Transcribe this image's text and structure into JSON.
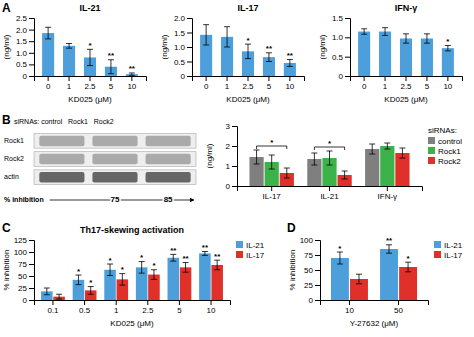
{
  "chart_data": [
    {
      "type": "bar",
      "panel": "A",
      "title": "IL-21",
      "categories": [
        "0",
        "1",
        "2.5",
        "5",
        "10"
      ],
      "series": [
        {
          "color": "#4d9fdc",
          "values": [
            1.85,
            1.3,
            0.8,
            0.4,
            0.08
          ],
          "errors": [
            0.25,
            0.1,
            0.35,
            0.3,
            0.05
          ],
          "annotations": [
            null,
            null,
            "*",
            "**",
            "**"
          ]
        }
      ],
      "xlabel": "KD025 (μM)",
      "ylabel": "(ng/ml)",
      "ylim": [
        0,
        2.5
      ],
      "yticks": [
        0,
        0.5,
        {
          "value": 1,
          "label": "1.0"
        },
        1.5,
        {
          "value": 2,
          "label": "2.0"
        },
        2.5
      ]
    },
    {
      "type": "bar",
      "title": "IL-17",
      "categories": [
        "0",
        "1",
        "2.5",
        "5",
        "10"
      ],
      "series": [
        {
          "color": "#4d9fdc",
          "values": [
            1.42,
            1.35,
            0.85,
            0.65,
            0.45
          ],
          "errors": [
            0.35,
            0.35,
            0.25,
            0.15,
            0.12
          ],
          "annotations": [
            null,
            null,
            "*",
            "**",
            "**"
          ]
        }
      ],
      "xlabel": "KD025 (μM)",
      "ylabel": "(ng/ml)",
      "ylim": [
        0,
        2
      ],
      "yticks": [
        0,
        0.5,
        {
          "value": 1,
          "label": "1.0"
        },
        1.5,
        {
          "value": 2,
          "label": "2.0"
        }
      ]
    },
    {
      "type": "bar",
      "title": "IFN-γ",
      "categories": [
        "0",
        "1",
        "2.5",
        "5",
        "10"
      ],
      "series": [
        {
          "color": "#4d9fdc",
          "values": [
            1.15,
            1.15,
            0.97,
            0.97,
            0.72
          ],
          "errors": [
            0.07,
            0.1,
            0.12,
            0.12,
            0.07
          ],
          "annotations": [
            null,
            null,
            null,
            null,
            "*"
          ]
        }
      ],
      "xlabel": "KD025 (μM)",
      "ylabel": "(ng/ml)",
      "ylim": [
        0,
        1.5
      ],
      "yticks": [
        0,
        0.5,
        {
          "value": 1,
          "label": "1.0"
        },
        1.5
      ]
    },
    {
      "type": "blot",
      "panel": "B",
      "title": "siRNAs: control   Rock1   Rock2",
      "categories": [
        "Rock1",
        "Rock2",
        "actin"
      ],
      "annotations": [
        "% inhibition"
      ],
      "values": [
        null,
        75,
        85
      ],
      "data_labels": true
    },
    {
      "type": "bar",
      "categories": [
        "IL-17",
        "IL-21",
        "IFN-γ"
      ],
      "series": [
        {
          "name": "control",
          "color": "#7f7f7f",
          "values": [
            1.45,
            1.35,
            1.85
          ],
          "errors": [
            0.35,
            0.3,
            0.25
          ]
        },
        {
          "name": "Rock1",
          "color": "#3cb34a",
          "values": [
            1.2,
            1.4,
            2.0
          ],
          "errors": [
            0.35,
            0.35,
            0.15
          ]
        },
        {
          "name": "Rock2",
          "color": "#e0302a",
          "values": [
            0.65,
            0.55,
            1.65
          ],
          "errors": [
            0.25,
            0.2,
            0.25
          ]
        }
      ],
      "ylabel": "(ng/ml)",
      "ylim": [
        0,
        3
      ],
      "yticks": [
        0,
        1,
        2,
        3
      ],
      "legend": "right",
      "legend_title": "siRNAs:",
      "annotations": [
        {
          "text": "*",
          "category": "IL-17",
          "series": [
            "control",
            "Rock2"
          ]
        },
        {
          "text": "*",
          "category": "IL-21",
          "series": [
            "control",
            "Rock2"
          ]
        }
      ]
    },
    {
      "type": "bar",
      "panel": "C",
      "title": "Th17-skewing activation",
      "categories": [
        "0.1",
        "0.5",
        "1",
        "2.5",
        "5",
        "10"
      ],
      "series": [
        {
          "name": "IL-21",
          "color": "#4d9fdc",
          "values": [
            18,
            42,
            63,
            68,
            88,
            97
          ],
          "errors": [
            7,
            10,
            12,
            12,
            7,
            4
          ],
          "annotations": [
            null,
            "*",
            "*",
            "*",
            "**",
            "**"
          ]
        },
        {
          "name": "IL-17",
          "color": "#e0302a",
          "values": [
            7,
            20,
            43,
            53,
            68,
            73
          ],
          "errors": [
            5,
            8,
            12,
            10,
            10,
            10
          ],
          "annotations": [
            null,
            "*",
            "*",
            "*",
            "**",
            "**"
          ]
        }
      ],
      "xlabel": "KD025 (μM)",
      "ylabel": "% inhibition",
      "ylim": [
        0,
        125
      ],
      "yticks": [
        0,
        25,
        50,
        75,
        100,
        125
      ],
      "legend": "right"
    },
    {
      "type": "bar",
      "panel": "D",
      "categories": [
        "10",
        "50"
      ],
      "series": [
        {
          "name": "IL-21",
          "color": "#4d9fdc",
          "values": [
            70,
            85
          ],
          "errors": [
            10,
            7
          ],
          "annotations": [
            "*",
            "**"
          ]
        },
        {
          "name": "IL-17",
          "color": "#e0302a",
          "values": [
            35,
            55
          ],
          "errors": [
            8,
            8
          ],
          "annotations": [
            null,
            "*"
          ]
        }
      ],
      "xlabel": "Y-27632 (μM)",
      "ylabel": "% inhibition",
      "ylim": [
        0,
        100
      ],
      "yticks": [
        0,
        25,
        50,
        75,
        100
      ],
      "legend": "right"
    }
  ]
}
